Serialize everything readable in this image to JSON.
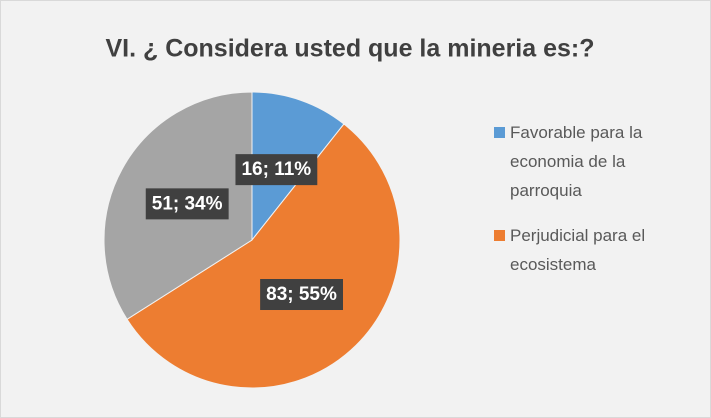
{
  "chart_data": {
    "type": "pie",
    "title": "VI. ¿ Considera usted que la mineria es:?",
    "categories": [
      "Favorable para la economia de la parroquia",
      "Perjudicial para el ecosistema",
      null
    ],
    "values": [
      16,
      83,
      51
    ],
    "value_labels": [
      "16; 11%",
      "83; 55%",
      "51; 34%"
    ],
    "colors": [
      "#5b9bd5",
      "#ed7d31",
      "#a5a5a5"
    ],
    "legend": "right"
  }
}
